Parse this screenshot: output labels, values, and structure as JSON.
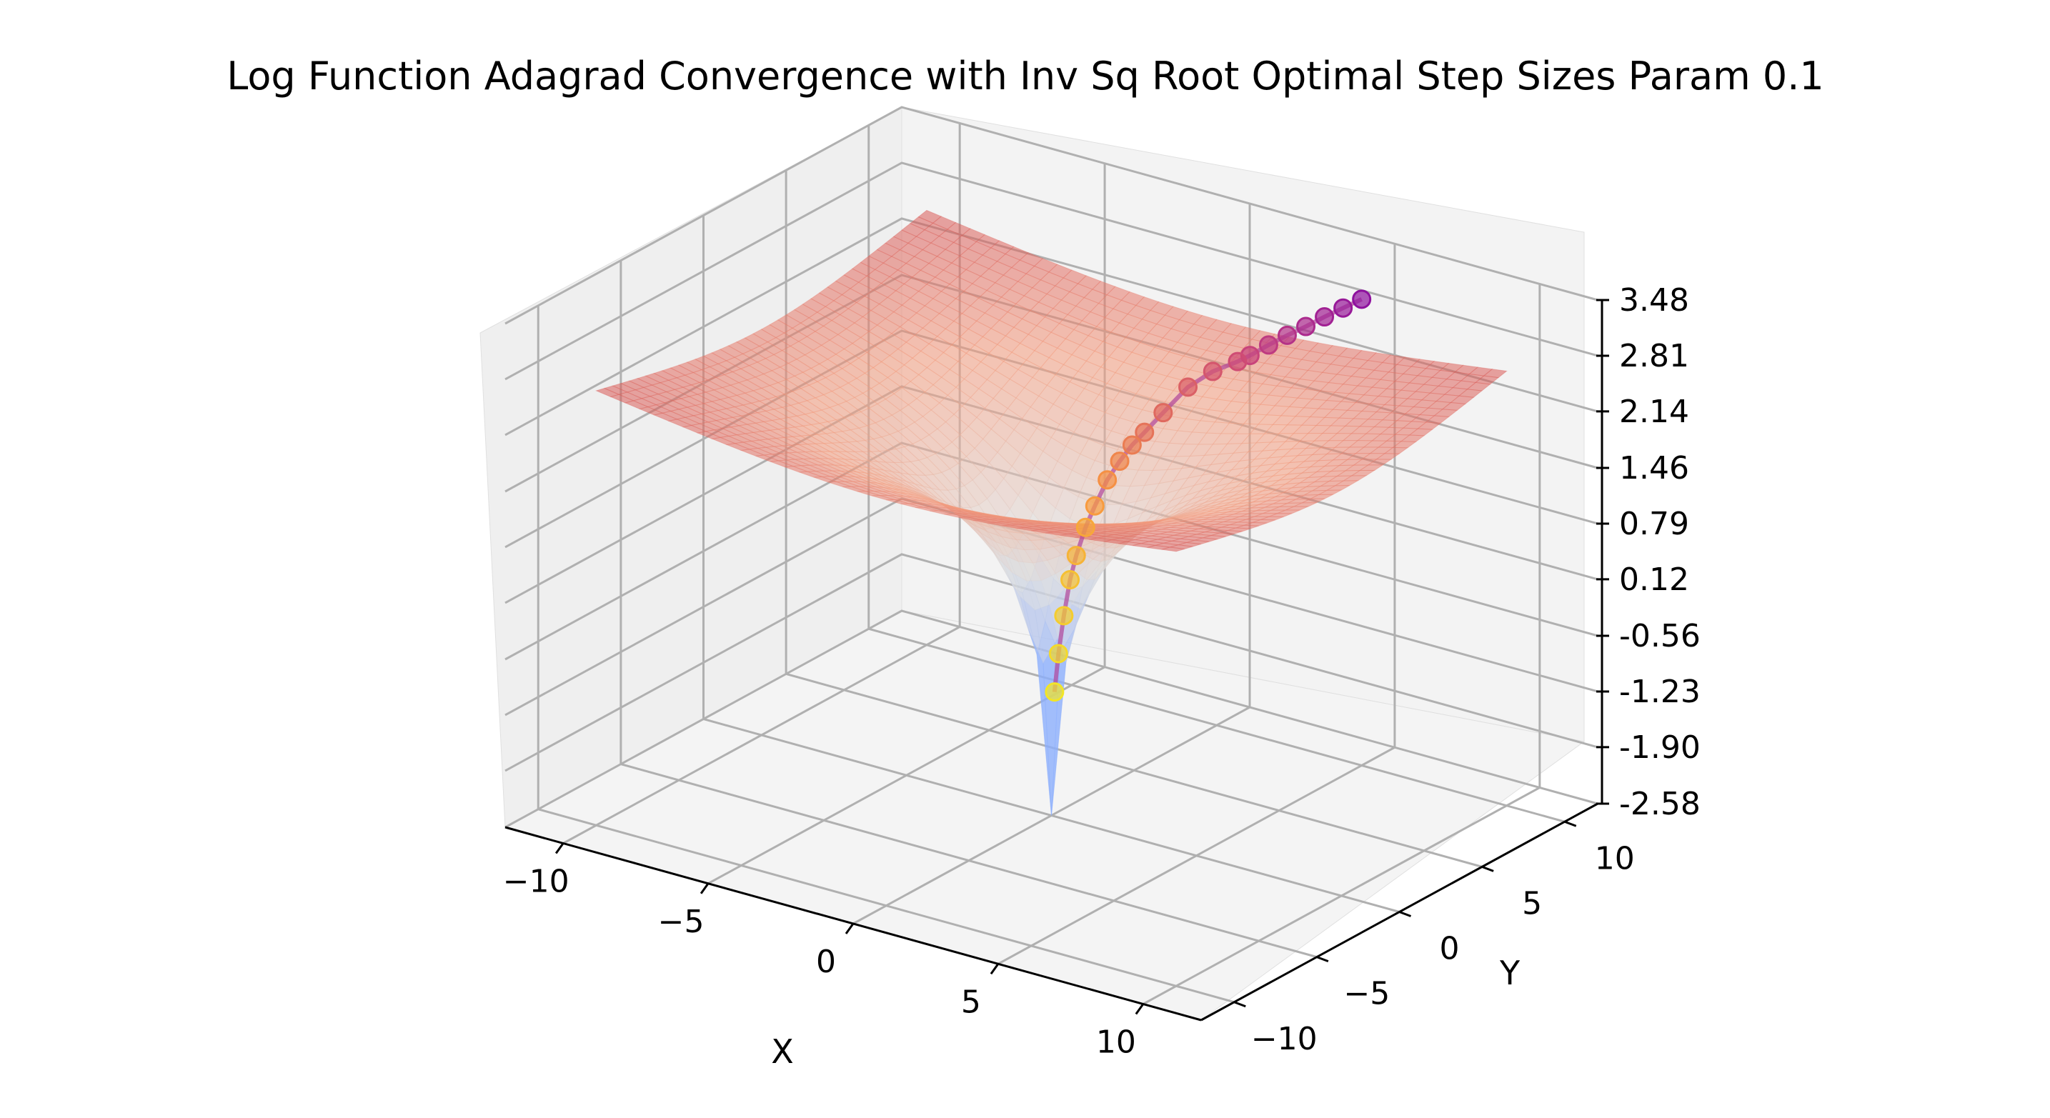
{
  "chart_data": {
    "type": "surface",
    "title": "Log Function Adagrad Convergence with Inv Sq Root Optimal Step Sizes Param 0.1",
    "xlabel": "X",
    "ylabel": "Y",
    "zlabel": "",
    "x_ticks": [
      "−10",
      "−5",
      "0",
      "5",
      "10"
    ],
    "y_ticks": [
      "−10",
      "−5",
      "0",
      "5",
      "10"
    ],
    "z_ticks": [
      "-2.58",
      "-1.90",
      "-1.23",
      "-0.56",
      "0.12",
      "0.79",
      "1.46",
      "2.14",
      "2.81",
      "3.48"
    ],
    "xlim": [
      -12,
      12
    ],
    "ylim": [
      -12,
      12
    ],
    "zlim": [
      -2.58,
      3.48
    ],
    "grid": true,
    "surface": {
      "function": "log(x^2 + y^2)/2 region",
      "colormap": "coolwarm",
      "alpha": 0.5
    },
    "trajectory": {
      "type": "scatter3d",
      "colormap": "plasma",
      "points": [
        [
          5.0,
          10.0,
          3.03
        ],
        [
          4.7,
          9.4,
          2.96
        ],
        [
          4.4,
          8.8,
          2.89
        ],
        [
          4.1,
          8.2,
          2.81
        ],
        [
          3.8,
          7.6,
          2.74
        ],
        [
          3.5,
          7.0,
          2.66
        ],
        [
          3.2,
          6.4,
          2.57
        ],
        [
          3.0,
          6.0,
          2.52
        ],
        [
          2.6,
          5.2,
          2.45
        ],
        [
          2.2,
          4.4,
          2.31
        ],
        [
          1.8,
          3.6,
          2.05
        ],
        [
          1.5,
          3.0,
          1.85
        ],
        [
          1.3,
          2.6,
          1.72
        ],
        [
          1.1,
          2.2,
          1.55
        ],
        [
          0.9,
          1.8,
          1.35
        ],
        [
          0.7,
          1.4,
          1.06
        ],
        [
          0.55,
          1.1,
          0.82
        ],
        [
          0.4,
          0.8,
          0.5
        ],
        [
          0.3,
          0.6,
          0.22
        ],
        [
          0.2,
          0.4,
          -0.2
        ],
        [
          0.1,
          0.25,
          -0.65
        ],
        [
          0.05,
          0.1,
          -1.1
        ]
      ]
    }
  }
}
